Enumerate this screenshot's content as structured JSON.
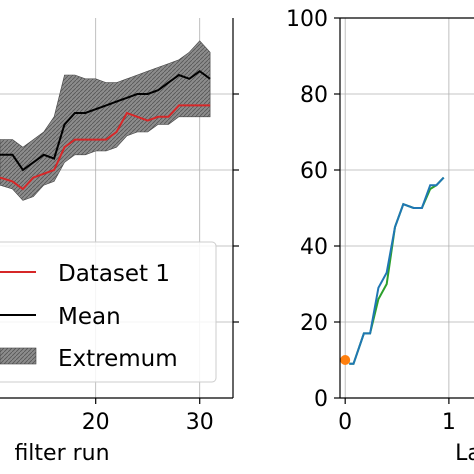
{
  "chart_data": [
    {
      "type": "line",
      "xlabel": "filter run",
      "xticks": [
        20,
        30
      ],
      "xlim": [
        10.8,
        33.2
      ],
      "ylim": [
        0,
        100
      ],
      "grid": true,
      "legend_position": "bottom-left",
      "series": [
        {
          "name": "Dataset 1",
          "color": "#d62728",
          "x": [
            10.8,
            12,
            13,
            14,
            15,
            16,
            17,
            18,
            19,
            20,
            21,
            22,
            23,
            24,
            25,
            26,
            27,
            28,
            29,
            30,
            31
          ],
          "y": [
            58,
            57,
            55,
            58,
            59,
            60,
            66,
            68,
            68,
            68,
            68,
            70,
            75,
            74,
            73,
            74,
            74,
            77,
            77,
            77,
            77
          ]
        },
        {
          "name": "Mean",
          "color": "#000000",
          "x": [
            10.8,
            12,
            13,
            14,
            15,
            16,
            17,
            18,
            19,
            20,
            21,
            22,
            23,
            24,
            25,
            26,
            27,
            28,
            29,
            30,
            31
          ],
          "y": [
            64,
            64,
            60,
            62,
            64,
            63,
            72,
            75,
            75,
            76,
            77,
            78,
            79,
            80,
            80,
            81,
            83,
            85,
            84,
            86,
            84
          ]
        },
        {
          "name": "Extremum",
          "type": "band",
          "color": "#888888",
          "x": [
            10.8,
            12,
            13,
            14,
            15,
            16,
            17,
            18,
            19,
            20,
            21,
            22,
            23,
            24,
            25,
            26,
            27,
            28,
            29,
            30,
            31
          ],
          "low": [
            56,
            55,
            52,
            53,
            56,
            57,
            62,
            64,
            64,
            65,
            65,
            66,
            69,
            70,
            70,
            72,
            72,
            74,
            74,
            74,
            74
          ],
          "high": [
            68,
            68,
            66,
            68,
            70,
            74,
            85,
            85,
            84,
            84,
            83,
            83,
            84,
            85,
            86,
            87,
            88,
            89,
            91,
            94,
            91
          ]
        }
      ]
    },
    {
      "type": "line",
      "xlabel": "La",
      "xticks": [
        0,
        1
      ],
      "xlim": [
        -0.2,
        1.4
      ],
      "yticks": [
        0,
        20,
        40,
        60,
        80,
        100
      ],
      "ylim": [
        0,
        100
      ],
      "grid": true,
      "series": [
        {
          "color": "#2ca02c",
          "x": [
            0.04,
            0.08,
            0.18,
            0.24,
            0.32,
            0.4,
            0.48,
            0.56,
            0.66,
            0.74,
            0.82,
            0.88,
            0.95
          ],
          "y": [
            9,
            9,
            17,
            17,
            26,
            30,
            45,
            51,
            50,
            50,
            55,
            56,
            58
          ]
        },
        {
          "color": "#1f77b4",
          "x": [
            0.04,
            0.08,
            0.18,
            0.24,
            0.32,
            0.4,
            0.48,
            0.56,
            0.66,
            0.74,
            0.82,
            0.88,
            0.95
          ],
          "y": [
            9,
            9,
            17,
            17,
            29,
            33,
            45,
            51,
            50,
            50,
            56,
            56,
            58
          ]
        },
        {
          "type": "scatter",
          "color": "#ff7f0e",
          "x": [
            0
          ],
          "y": [
            10
          ]
        }
      ]
    }
  ]
}
